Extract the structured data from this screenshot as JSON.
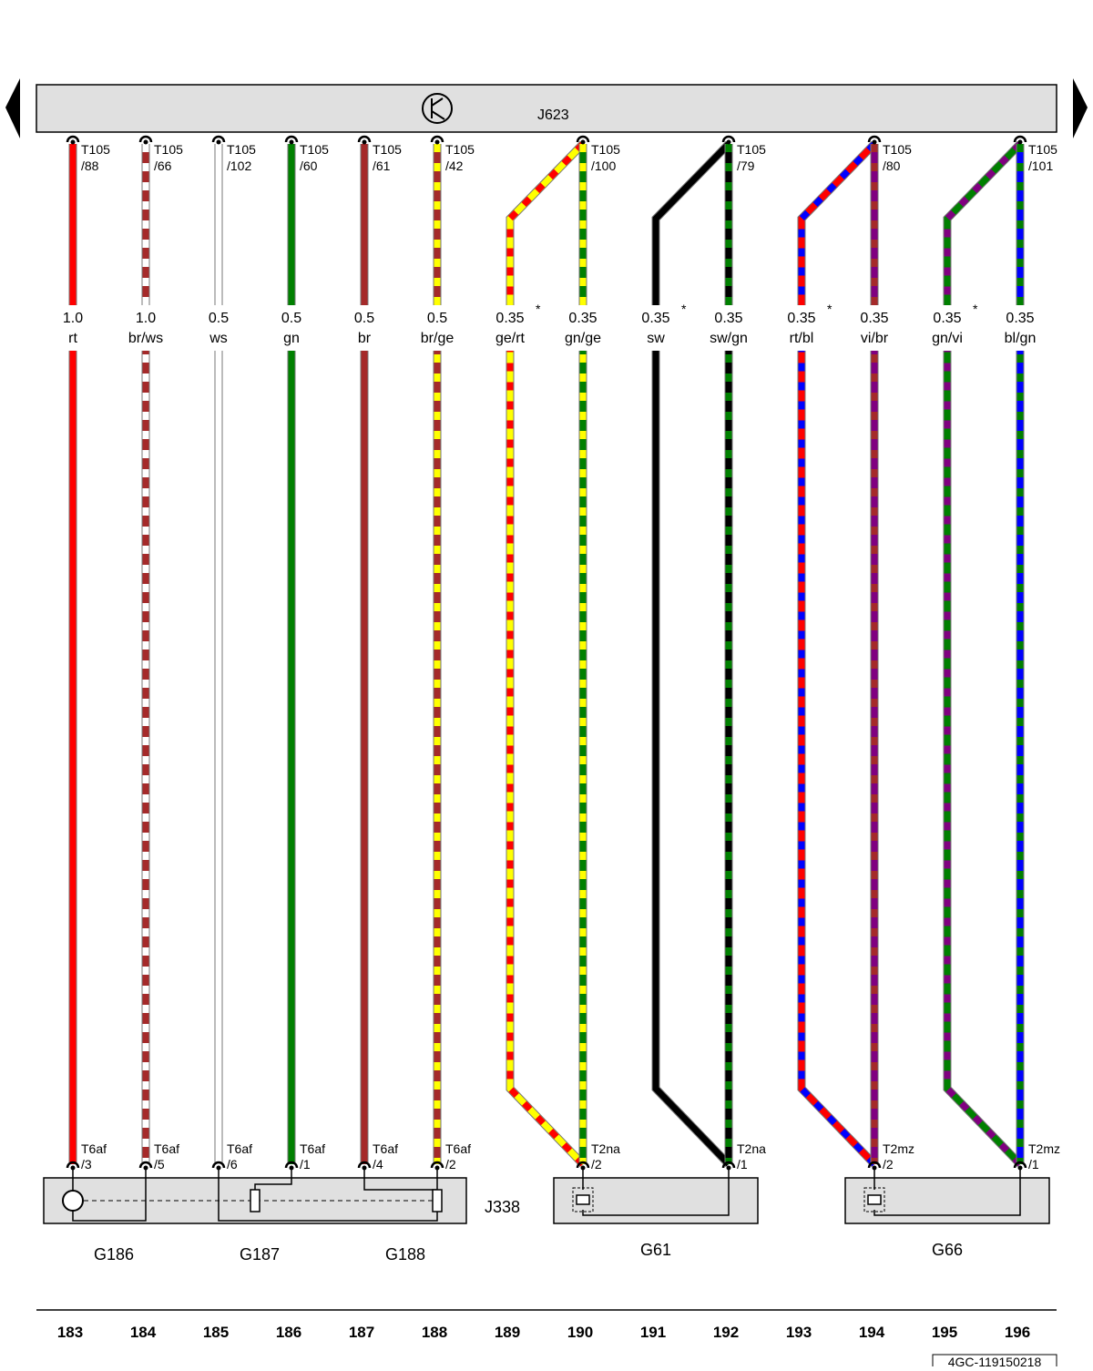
{
  "header": {
    "label": "J623"
  },
  "wires": [
    {
      "column": "183",
      "size": "1.0",
      "color": "rt",
      "colors": [
        "#ff0000"
      ],
      "top": {
        "connector": "T105",
        "pin": "/88"
      },
      "bottom": {
        "connector": "T6af",
        "pin": "/3"
      }
    },
    {
      "column": "184",
      "size": "1.0",
      "color": "br/ws",
      "colors": [
        "#a52a2a",
        "#ffffff"
      ],
      "top": {
        "connector": "T105",
        "pin": "/66"
      },
      "bottom": {
        "connector": "T6af",
        "pin": "/5"
      }
    },
    {
      "column": "185",
      "size": "0.5",
      "color": "ws",
      "colors": [
        "#ffffff"
      ],
      "top": {
        "connector": "T105",
        "pin": "/102"
      },
      "bottom": {
        "connector": "T6af",
        "pin": "/6"
      }
    },
    {
      "column": "186",
      "size": "0.5",
      "color": "gn",
      "colors": [
        "#008000"
      ],
      "top": {
        "connector": "T105",
        "pin": "/60"
      },
      "bottom": {
        "connector": "T6af",
        "pin": "/1"
      }
    },
    {
      "column": "187",
      "size": "0.5",
      "color": "br",
      "colors": [
        "#a52a2a"
      ],
      "top": {
        "connector": "T105",
        "pin": "/61"
      },
      "bottom": {
        "connector": "T6af",
        "pin": "/4"
      }
    },
    {
      "column": "188",
      "size": "0.5",
      "color": "br/ge",
      "colors": [
        "#a52a2a",
        "#ffff00"
      ],
      "top": {
        "connector": "T105",
        "pin": "/42"
      },
      "bottom": {
        "connector": "T6af",
        "pin": "/2"
      }
    },
    {
      "column": "189",
      "size": "0.35",
      "note": "*",
      "color": "ge/rt",
      "colors": [
        "#ffff00",
        "#ff0000"
      ]
    },
    {
      "column": "190",
      "size": "0.35",
      "color": "gn/ge",
      "colors": [
        "#008000",
        "#ffff00"
      ],
      "top": {
        "connector": "T105",
        "pin": "/100"
      },
      "bottom": {
        "connector": "T2na",
        "pin": "/2"
      }
    },
    {
      "column": "191",
      "size": "0.35",
      "note": "*",
      "color": "sw",
      "colors": [
        "#000000"
      ]
    },
    {
      "column": "192",
      "size": "0.35",
      "color": "sw/gn",
      "colors": [
        "#000000",
        "#008000"
      ],
      "top": {
        "connector": "T105",
        "pin": "/79"
      },
      "bottom": {
        "connector": "T2na",
        "pin": "/1"
      }
    },
    {
      "column": "193",
      "size": "0.35",
      "note": "*",
      "color": "rt/bl",
      "colors": [
        "#ff0000",
        "#0000ff"
      ]
    },
    {
      "column": "194",
      "size": "0.35",
      "color": "vi/br",
      "colors": [
        "#800080",
        "#a52a2a"
      ],
      "top": {
        "connector": "T105",
        "pin": "/80"
      },
      "bottom": {
        "connector": "T2mz",
        "pin": "/2"
      }
    },
    {
      "column": "195",
      "size": "0.35",
      "note": "*",
      "color": "gn/vi",
      "colors": [
        "#008000",
        "#800080"
      ]
    },
    {
      "column": "196",
      "size": "0.35",
      "color": "bl/gn",
      "colors": [
        "#0000ff",
        "#008000"
      ],
      "top": {
        "connector": "T105",
        "pin": "/101"
      },
      "bottom": {
        "connector": "T2mz",
        "pin": "/1"
      }
    }
  ],
  "components": [
    "J338",
    "G186",
    "G187",
    "G188",
    "G61",
    "G66"
  ],
  "footer": {
    "code": "4GC-119150218"
  }
}
